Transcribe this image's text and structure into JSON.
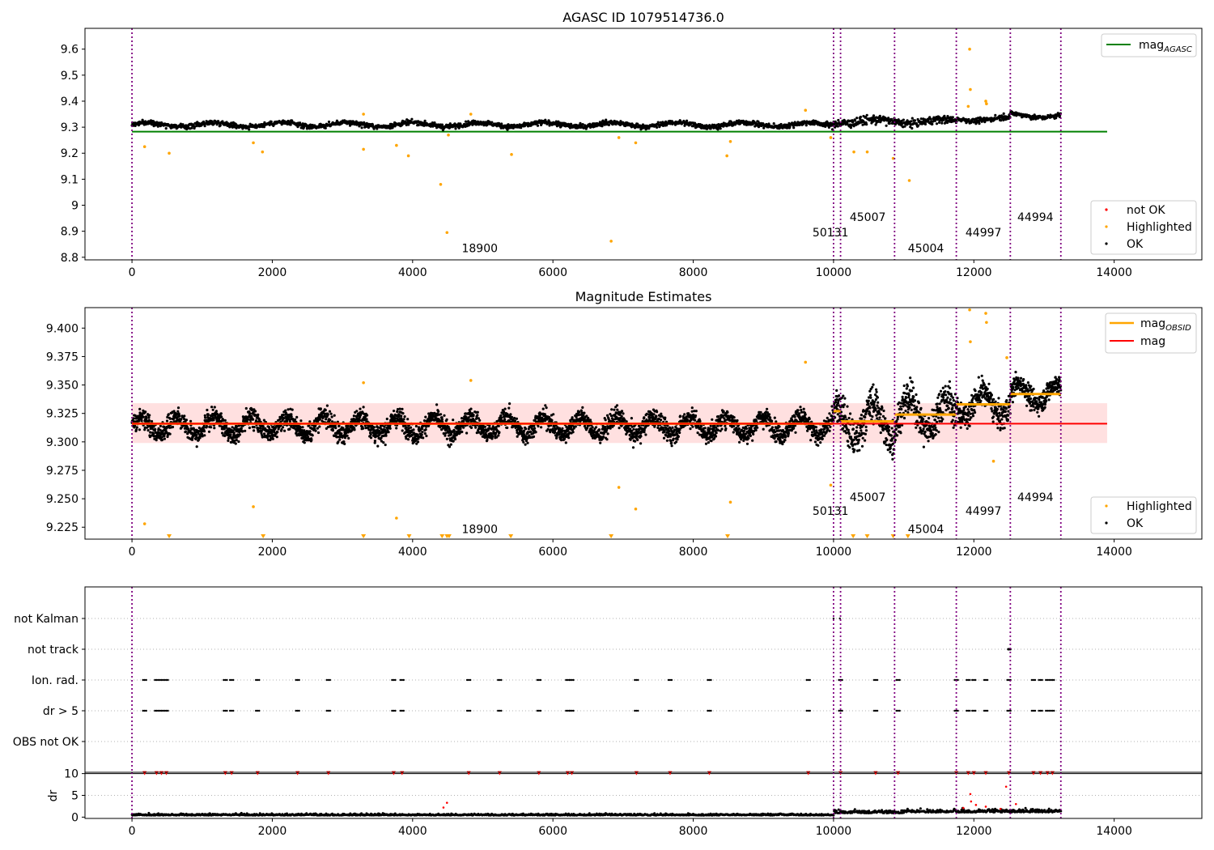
{
  "chart_data": [
    {
      "type": "scatter",
      "title": "AGASC ID 1079514736.0",
      "xlim": [
        -670,
        15250
      ],
      "ylim": [
        8.79,
        9.68
      ],
      "xticks": [
        0,
        2000,
        4000,
        6000,
        8000,
        10000,
        12000,
        14000
      ],
      "yticks": [
        8.8,
        8.9,
        9.0,
        9.1,
        9.2,
        9.3,
        9.4,
        9.5,
        9.6
      ],
      "grid": false,
      "reference_line": {
        "name": "mag",
        "subscript": "AGASC",
        "value": 9.283,
        "x_range": [
          0,
          13900
        ],
        "color": "#008000"
      },
      "legend_top": {
        "placement": "top-right",
        "entries": [
          {
            "label": "mag",
            "subscript": "AGASC",
            "color": "#008000"
          }
        ]
      },
      "legend_bottom": {
        "placement": "bottom-right",
        "entries": [
          {
            "label": "not OK",
            "color": "#ff0000"
          },
          {
            "label": "Highlighted",
            "color": "#ffa500"
          },
          {
            "label": "OK",
            "color": "#000000"
          }
        ]
      },
      "segment_boundaries": [
        0,
        10000,
        10100,
        10870,
        11750,
        12520,
        13240
      ],
      "obsid_labels": [
        {
          "text": "18900",
          "x": 4700,
          "y": 8.82
        },
        {
          "text": "50131",
          "x": 9700,
          "y": 8.88
        },
        {
          "text": "45007",
          "x": 10230,
          "y": 8.94
        },
        {
          "text": "45004",
          "x": 11060,
          "y": 8.82
        },
        {
          "text": "44997",
          "x": 11880,
          "y": 8.88
        },
        {
          "text": "44994",
          "x": 12620,
          "y": 8.94
        }
      ],
      "highlighted_points": [
        [
          180,
          9.225
        ],
        [
          530,
          9.2
        ],
        [
          1730,
          9.24
        ],
        [
          1860,
          9.205
        ],
        [
          3300,
          9.215
        ],
        [
          3770,
          9.23
        ],
        [
          3940,
          9.19
        ],
        [
          4400,
          9.08
        ],
        [
          4490,
          8.895
        ],
        [
          4510,
          9.27
        ],
        [
          5410,
          9.195
        ],
        [
          6830,
          8.862
        ],
        [
          6940,
          9.26
        ],
        [
          7180,
          9.24
        ],
        [
          8480,
          9.19
        ],
        [
          8530,
          9.245
        ],
        [
          9960,
          9.26
        ],
        [
          10290,
          9.205
        ],
        [
          10480,
          9.205
        ],
        [
          10850,
          9.18
        ],
        [
          11080,
          9.095
        ],
        [
          11940,
          9.6
        ],
        [
          11950,
          9.445
        ],
        [
          12170,
          9.4
        ],
        [
          12180,
          9.39
        ],
        [
          3300,
          9.35
        ],
        [
          4830,
          9.35
        ],
        [
          9600,
          9.365
        ],
        [
          11920,
          9.38
        ]
      ]
    },
    {
      "type": "scatter",
      "title": "Magnitude Estimates",
      "xlim": [
        -670,
        15250
      ],
      "ylim": [
        9.2145,
        9.418
      ],
      "xticks": [
        0,
        2000,
        4000,
        6000,
        8000,
        10000,
        12000,
        14000
      ],
      "yticks": [
        9.225,
        9.25,
        9.275,
        9.3,
        9.325,
        9.35,
        9.375,
        9.4
      ],
      "ytick_labels": [
        "9.225",
        "9.250",
        "9.275",
        "9.300",
        "9.325",
        "9.350",
        "9.375",
        "9.400"
      ],
      "grid": false,
      "mean_line": {
        "name": "mag",
        "value": 9.316,
        "band": [
          9.299,
          9.334
        ],
        "x_range": [
          0,
          13900
        ],
        "color": "#ff0000"
      },
      "obsid_mags": [
        {
          "x": [
            0,
            10000
          ],
          "value": 9.316
        },
        {
          "x": [
            10000,
            10100
          ],
          "value": 9.327
        },
        {
          "x": [
            10100,
            10870
          ],
          "value": 9.318
        },
        {
          "x": [
            10870,
            11750
          ],
          "value": 9.324
        },
        {
          "x": [
            11750,
            12520
          ],
          "value": 9.333
        },
        {
          "x": [
            12520,
            13240
          ],
          "value": 9.342
        }
      ],
      "legend_top": {
        "placement": "top-right",
        "entries": [
          {
            "label": "mag",
            "subscript": "OBSID",
            "color": "#ffa500"
          },
          {
            "label": "mag",
            "color": "#ff0000"
          }
        ]
      },
      "legend_bottom": {
        "placement": "bottom-right",
        "entries": [
          {
            "label": "Highlighted",
            "color": "#ffa500"
          },
          {
            "label": "OK",
            "color": "#000000"
          }
        ]
      },
      "segment_boundaries": [
        0,
        10000,
        10100,
        10870,
        11750,
        12520,
        13240
      ],
      "obsid_labels": [
        {
          "text": "18900",
          "x": 4700,
          "y": 9.22
        },
        {
          "text": "50131",
          "x": 9700,
          "y": 9.236
        },
        {
          "text": "45007",
          "x": 10230,
          "y": 9.248
        },
        {
          "text": "45004",
          "x": 11060,
          "y": 9.22
        },
        {
          "text": "44997",
          "x": 11880,
          "y": 9.236
        },
        {
          "text": "44994",
          "x": 12620,
          "y": 9.248
        }
      ],
      "highlighted_points": [
        [
          180,
          9.228
        ],
        [
          1730,
          9.243
        ],
        [
          3770,
          9.233
        ],
        [
          7180,
          9.241
        ],
        [
          8530,
          9.247
        ],
        [
          6940,
          9.26
        ],
        [
          9960,
          9.262
        ],
        [
          12170,
          9.413
        ],
        [
          11940,
          9.416
        ],
        [
          11950,
          9.388
        ],
        [
          12180,
          9.405
        ],
        [
          3300,
          9.352
        ],
        [
          4830,
          9.354
        ],
        [
          9600,
          9.37
        ],
        [
          12470,
          9.374
        ],
        [
          12280,
          9.283
        ]
      ],
      "below_range_markers": [
        530,
        1870,
        3300,
        3950,
        4420,
        4490,
        4520,
        5400,
        6830,
        8490,
        10280,
        10480,
        10850,
        11060
      ]
    },
    {
      "type": "scatter",
      "xlim": [
        -670,
        15250
      ],
      "xticks": [
        0,
        2000,
        4000,
        6000,
        8000,
        10000,
        12000,
        14000
      ],
      "flag_rows": [
        "not Kalman",
        "not track",
        "Ion. rad.",
        "dr > 5",
        "OBS not OK"
      ],
      "segment_boundaries": [
        0,
        10000,
        10100,
        10870,
        11750,
        12520,
        13240
      ],
      "flag_clusters": [
        180,
        350,
        420,
        490,
        1330,
        1420,
        1790,
        2360,
        2800,
        3730,
        3850,
        4800,
        5240,
        5800,
        6210,
        6270,
        7190,
        7670,
        8230,
        9640,
        10100,
        10600,
        10920,
        11750,
        11920,
        12000,
        12170,
        12500,
        12850,
        12950,
        13050,
        13120
      ],
      "not_kalman_points": [
        10000,
        10090
      ],
      "not_track_points": [
        12490,
        12500,
        12520
      ]
    },
    {
      "type": "scatter",
      "xlim": [
        -670,
        15250
      ],
      "ylim": [
        -0.3,
        10.3
      ],
      "ylabel": "dr",
      "yticks": [
        0,
        5,
        10
      ],
      "xticks": [
        0,
        2000,
        4000,
        6000,
        8000,
        10000,
        12000,
        14000
      ],
      "segment_boundaries": [
        0,
        10000,
        10100,
        10870,
        11750,
        12520,
        13240
      ],
      "capped_points_value": 10,
      "outlier_points": [
        [
          4440,
          2.2
        ],
        [
          4490,
          3.3
        ],
        [
          11850,
          2.1
        ],
        [
          11960,
          3.6
        ],
        [
          12030,
          2.8
        ],
        [
          12170,
          2.4
        ],
        [
          12380,
          1.9
        ],
        [
          12460,
          7.0
        ],
        [
          12600,
          3.0
        ],
        [
          11950,
          5.3
        ]
      ]
    }
  ]
}
